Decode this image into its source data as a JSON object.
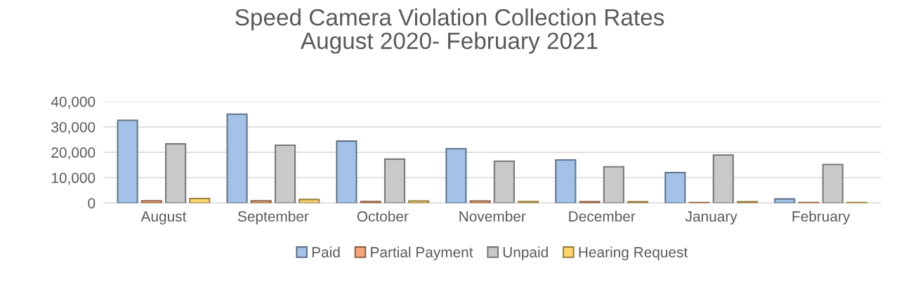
{
  "chart_data": {
    "type": "bar",
    "title": "Speed Camera Violation Collection Rates\nAugust 2020- February 2021",
    "categories": [
      "August",
      "September",
      "October",
      "November",
      "December",
      "January",
      "February"
    ],
    "series": [
      {
        "name": "Paid",
        "color": "#a4c2e8",
        "values": [
          32600,
          35000,
          24400,
          21400,
          17000,
          12000,
          1600
        ]
      },
      {
        "name": "Partial Payment",
        "color": "#f4a67a",
        "values": [
          900,
          900,
          600,
          800,
          500,
          200,
          200
        ]
      },
      {
        "name": "Unpaid",
        "color": "#c9c9c9",
        "values": [
          23300,
          22800,
          17300,
          16500,
          14300,
          18900,
          15200
        ]
      },
      {
        "name": "Hearing Request",
        "color": "#ffd56e",
        "values": [
          1800,
          1400,
          800,
          600,
          500,
          500,
          200
        ]
      }
    ],
    "ylim": [
      0,
      40000
    ],
    "yticks": [
      {
        "value": 0,
        "label": "0"
      },
      {
        "value": 10000,
        "label": "10,000"
      },
      {
        "value": 20000,
        "label": "20,000"
      },
      {
        "value": 30000,
        "label": "30,000"
      },
      {
        "value": 40000,
        "label": "40,000"
      }
    ],
    "grid": "y",
    "legend": "bottom"
  }
}
